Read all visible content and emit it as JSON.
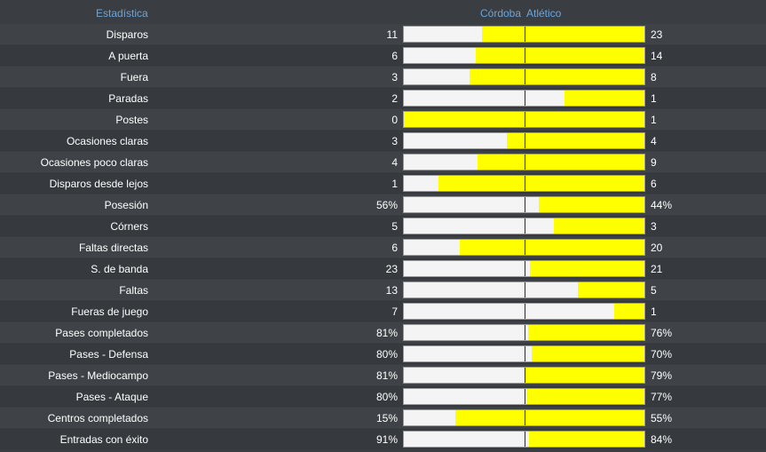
{
  "header": {
    "stat_label": "Estadística",
    "home_team": "Córdoba",
    "away_team": "Atlético"
  },
  "colors": {
    "home": "#f4f4f4",
    "away": "#ffff00",
    "header_text": "#6aa6dd"
  },
  "stats": [
    {
      "label": "Disparos",
      "home": "11",
      "away": "23",
      "home_share": 0.324
    },
    {
      "label": "A puerta",
      "home": "6",
      "away": "14",
      "home_share": 0.3
    },
    {
      "label": "Fuera",
      "home": "3",
      "away": "8",
      "home_share": 0.273
    },
    {
      "label": "Paradas",
      "home": "2",
      "away": "1",
      "home_share": 0.667
    },
    {
      "label": "Postes",
      "home": "0",
      "away": "1",
      "home_share": 0.0
    },
    {
      "label": "Ocasiones claras",
      "home": "3",
      "away": "4",
      "home_share": 0.429
    },
    {
      "label": "Ocasiones poco claras",
      "home": "4",
      "away": "9",
      "home_share": 0.308
    },
    {
      "label": "Disparos desde lejos",
      "home": "1",
      "away": "6",
      "home_share": 0.143
    },
    {
      "label": "Posesión",
      "home": "56%",
      "away": "44%",
      "home_share": 0.56
    },
    {
      "label": "Córners",
      "home": "5",
      "away": "3",
      "home_share": 0.625
    },
    {
      "label": "Faltas directas",
      "home": "6",
      "away": "20",
      "home_share": 0.231
    },
    {
      "label": "S. de banda",
      "home": "23",
      "away": "21",
      "home_share": 0.523
    },
    {
      "label": "Faltas",
      "home": "13",
      "away": "5",
      "home_share": 0.722
    },
    {
      "label": "Fueras de juego",
      "home": "7",
      "away": "1",
      "home_share": 0.875
    },
    {
      "label": "Pases completados",
      "home": "81%",
      "away": "76%",
      "home_share": 0.516
    },
    {
      "label": "Pases - Defensa",
      "home": "80%",
      "away": "70%",
      "home_share": 0.533
    },
    {
      "label": "Pases - Mediocampo",
      "home": "81%",
      "away": "79%",
      "home_share": 0.506
    },
    {
      "label": "Pases - Ataque",
      "home": "80%",
      "away": "77%",
      "home_share": 0.51
    },
    {
      "label": "Centros completados",
      "home": "15%",
      "away": "55%",
      "home_share": 0.214
    },
    {
      "label": "Entradas con éxito",
      "home": "91%",
      "away": "84%",
      "home_share": 0.52
    }
  ]
}
